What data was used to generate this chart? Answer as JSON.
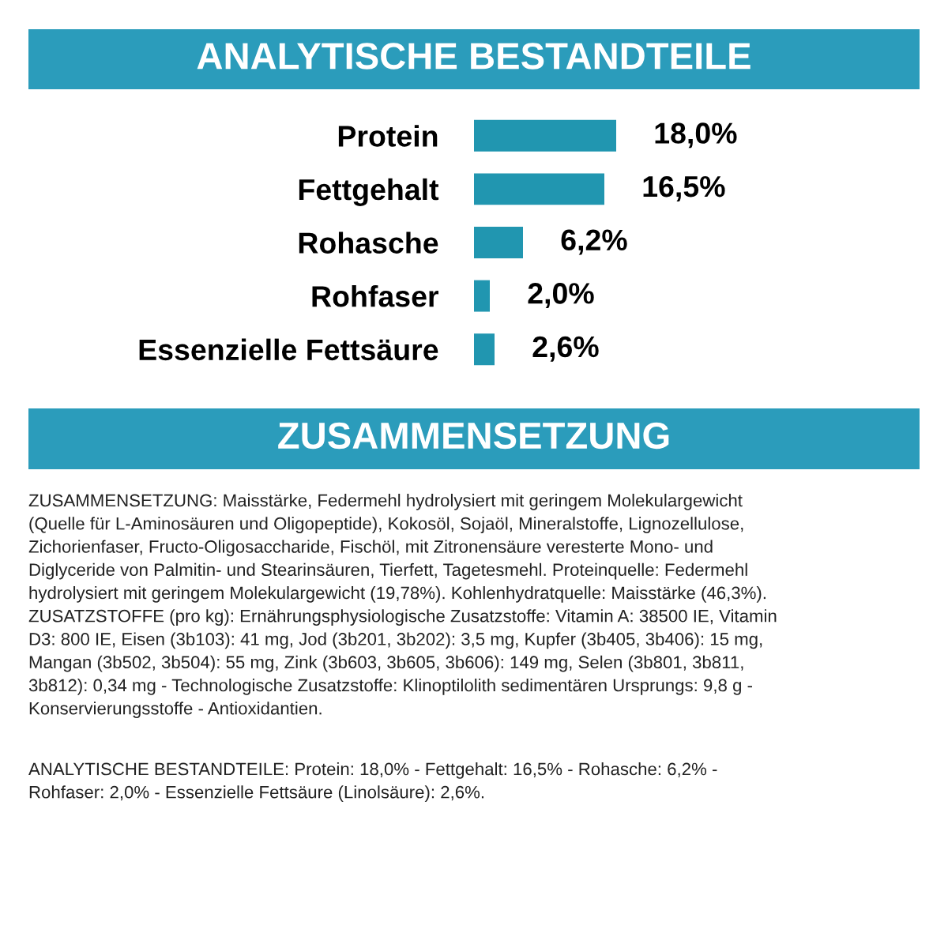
{
  "chart_data": {
    "type": "bar",
    "orientation": "horizontal",
    "title": "ANALYTISCHE BESTANDTEILE",
    "categories": [
      "Protein",
      "Fettgehalt",
      "Rohasche",
      "Rohfaser",
      "Essenzielle Fettsäure"
    ],
    "values": [
      18.0,
      16.5,
      6.2,
      2.0,
      2.6
    ],
    "value_labels": [
      "18,0%",
      "16,5%",
      "6,2%",
      "2,0%",
      "2,6%"
    ],
    "color": "#2196b0",
    "grid": false,
    "legend": false,
    "annotations": [
      "ZUSAMMENSETZUNG",
      "ZUSAMMENSETZUNG: Maisstärke, Federmehl hydrolysiert mit geringem Molekulargewicht\n(Quelle für L-Aminosäuren und Oligopeptide), Kokosöl, Sojaöl, Mineralstoffe, Lignozellulose,\nZichorienfaser, Fructo-Oligosaccharide, Fischöl, mit Zitronensäure veresterte Mono- und\nDiglyceride von Palmitin- und Stearinsäuren, Tierfett, Tagetesmehl. Proteinquelle: Federmehl\nhydrolysiert mit geringem Molekulargewicht (19,78%). Kohlenhydratquelle: Maisstärke (46,3%).\nZUSATZSTOFFE (pro kg): Ernährungsphysiologische Zusatzstoffe: Vitamin A: 38500 IE, Vitamin\nD3: 800 IE, Eisen (3b103): 41 mg, Jod (3b201, 3b202): 3,5 mg, Kupfer (3b405, 3b406): 15 mg,\nMangan (3b502, 3b504): 55 mg, Zink (3b603, 3b605, 3b606): 149 mg, Selen (3b801, 3b811,\n3b812): 0,34 mg - Technologische Zusatzstoffe: Klinoptilolith sedimentären Ursprungs: 9,8 g -\nKonservierungsstoffe - Antioxidantien.",
      "ANALYTISCHE BESTANDTEILE: Protein: 18,0% - Fettgehalt: 16,5% - Rohasche: 6,2% -\nRohfaser: 2,0% - Essenzielle Fettsäure (Linolsäure): 2,6%."
    ]
  }
}
